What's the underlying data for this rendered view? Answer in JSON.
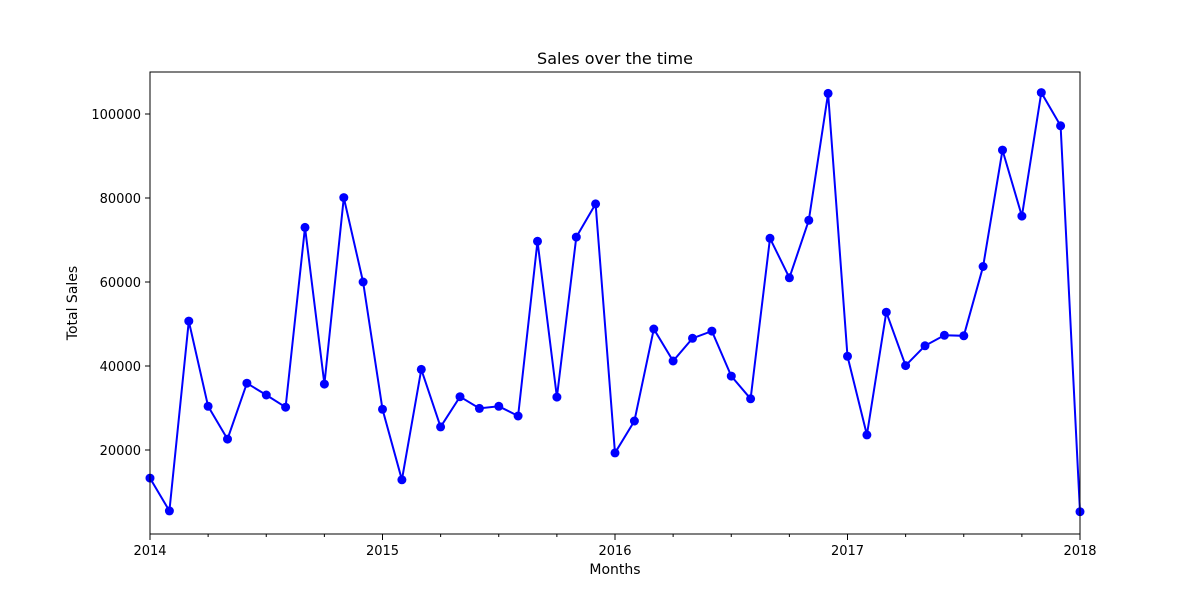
{
  "chart_data": {
    "type": "line",
    "title": "Sales over the time",
    "xlabel": "Months",
    "ylabel": "Total Sales",
    "xlim": [
      "2014-01",
      "2018-01"
    ],
    "ylim": [
      0,
      110000
    ],
    "x_tick_labels": [
      "2014",
      "2015",
      "2016",
      "2017",
      "2018"
    ],
    "y_ticks": [
      20000,
      40000,
      60000,
      80000,
      100000
    ],
    "grid": false,
    "marker": "circle",
    "series_color": "#0000ff",
    "x": [
      "2014-01",
      "2014-02",
      "2014-03",
      "2014-04",
      "2014-05",
      "2014-06",
      "2014-07",
      "2014-08",
      "2014-09",
      "2014-10",
      "2014-11",
      "2014-12",
      "2015-01",
      "2015-02",
      "2015-03",
      "2015-04",
      "2015-05",
      "2015-06",
      "2015-07",
      "2015-08",
      "2015-09",
      "2015-10",
      "2015-11",
      "2015-12",
      "2016-01",
      "2016-02",
      "2016-03",
      "2016-04",
      "2016-05",
      "2016-06",
      "2016-07",
      "2016-08",
      "2016-09",
      "2016-10",
      "2016-11",
      "2016-12",
      "2017-01",
      "2017-02",
      "2017-03",
      "2017-04",
      "2017-05",
      "2017-06",
      "2017-07",
      "2017-08",
      "2017-09",
      "2017-10",
      "2017-11",
      "2017-12",
      "2018-01"
    ],
    "series": [
      {
        "values": [
          13300,
          5500,
          50700,
          30400,
          22600,
          35900,
          33100,
          30200,
          73000,
          35700,
          80100,
          60000,
          29700,
          12900,
          39200,
          25500,
          32700,
          29900,
          30400,
          28100,
          69700,
          32600,
          70700,
          78600,
          19300,
          26900,
          48800,
          41200,
          46600,
          48300,
          37600,
          32200,
          70400,
          61000,
          74700,
          104900,
          42300,
          23600,
          52800,
          40100,
          44800,
          47300,
          47200,
          63700,
          91400,
          75700,
          105100,
          97200,
          5300
        ]
      }
    ]
  }
}
